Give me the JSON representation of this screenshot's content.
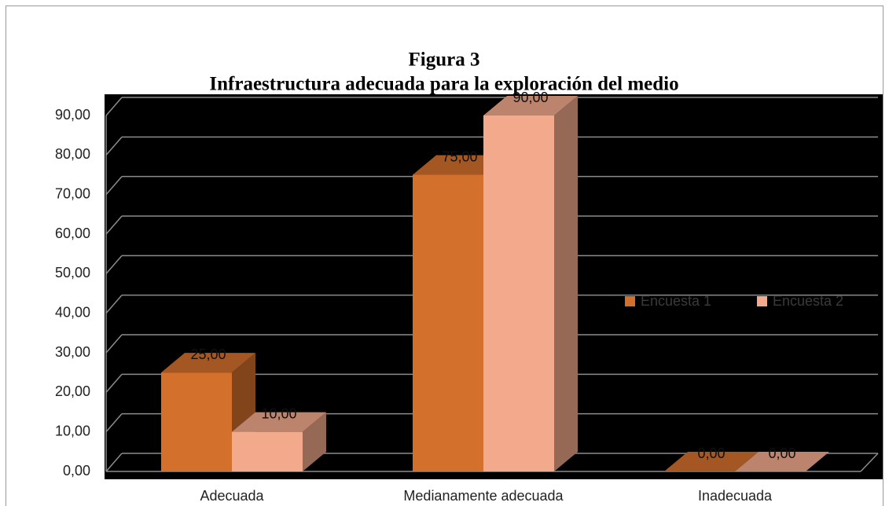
{
  "chart_data": {
    "type": "bar3d",
    "title": "Figura 3",
    "subtitle": "Infraestructura adecuada para la exploración del medio",
    "categories": [
      "Adecuada",
      "Medianamente adecuada",
      "Inadecuada"
    ],
    "series": [
      {
        "name": "Encuesta 1",
        "color": "#d2702c",
        "values": [
          25,
          75,
          0
        ],
        "value_labels": [
          "25,00",
          "75,00",
          "0,00"
        ]
      },
      {
        "name": "Encuesta 2",
        "color": "#f2a98c",
        "values": [
          10,
          90,
          0
        ],
        "value_labels": [
          "10,00",
          "90,00",
          "0,00"
        ]
      }
    ],
    "ylim": [
      0,
      90
    ],
    "yticks": [
      {
        "value": 0,
        "label": "0,00"
      },
      {
        "value": 10,
        "label": "10,00"
      },
      {
        "value": 20,
        "label": "20,00"
      },
      {
        "value": 30,
        "label": "30,00"
      },
      {
        "value": 40,
        "label": "40,00"
      },
      {
        "value": 50,
        "label": "50,00"
      },
      {
        "value": 60,
        "label": "60,00"
      },
      {
        "value": 70,
        "label": "70,00"
      },
      {
        "value": 80,
        "label": "80,00"
      },
      {
        "value": 90,
        "label": "90,00"
      }
    ],
    "grid": true,
    "legend": "right"
  }
}
